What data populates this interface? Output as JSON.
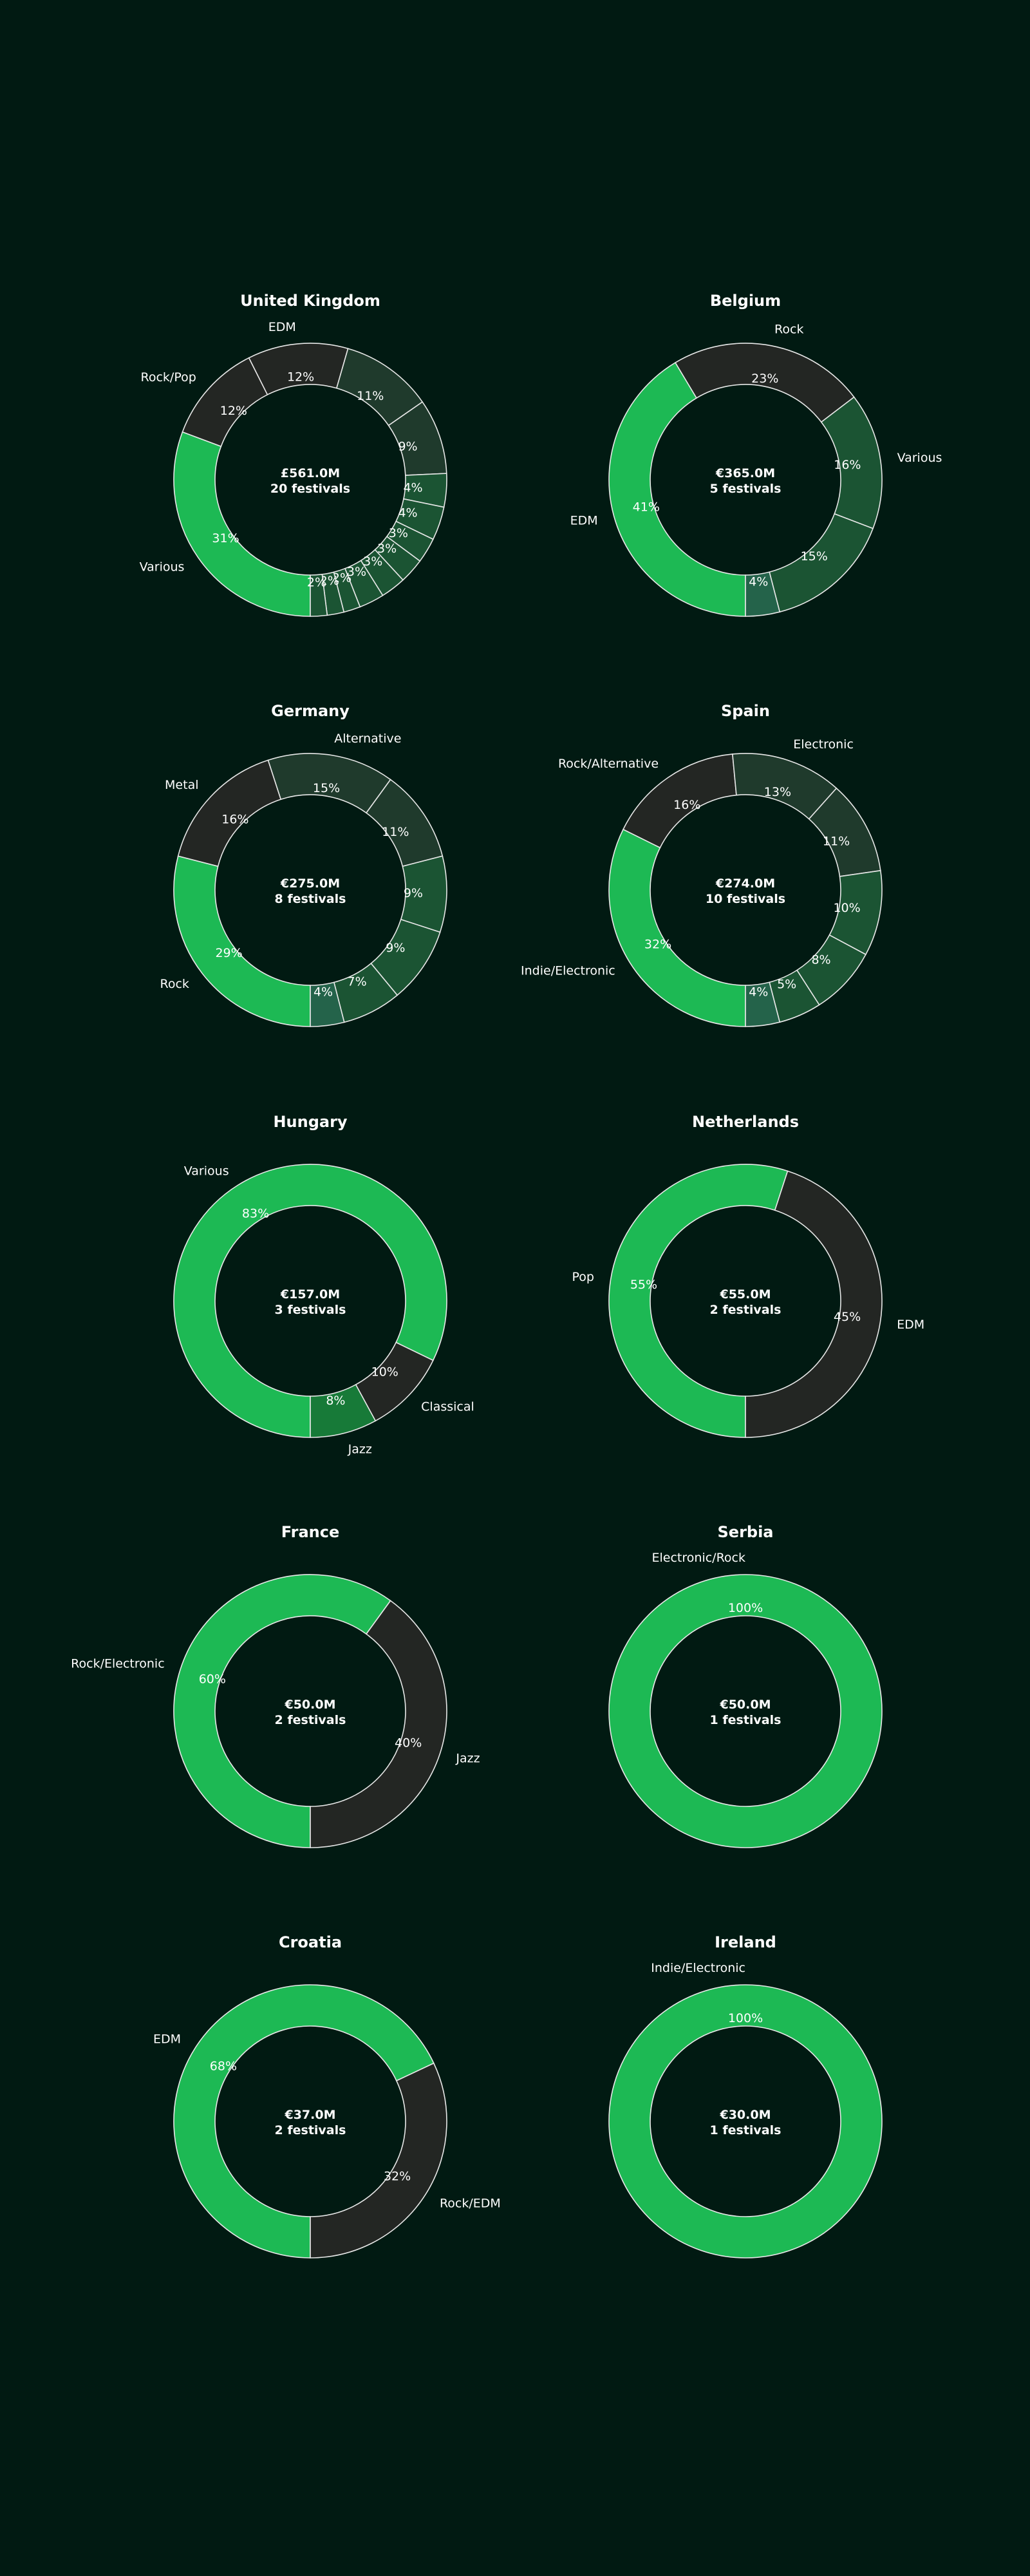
{
  "colors": {
    "background": "#011a12",
    "primary_green": "#1db954",
    "dark_gray": "#232623",
    "dark_green": "#1b5433",
    "green_2": "#24634a",
    "green_3": "#177a38",
    "mid_dark_green": "#1f3a2c",
    "text": "#ffffff",
    "slice_edge": "#e8e8e8"
  },
  "chart_data": [
    {
      "type": "pie",
      "title": "United Kingdom",
      "center_line1": "£561.0M",
      "center_line2": "20 festivals",
      "slices": [
        {
          "label": "Various",
          "pct": "31%",
          "value": 31,
          "color": "#1db954"
        },
        {
          "label": "Rock/Pop",
          "pct": "12%",
          "value": 12,
          "color": "#232623"
        },
        {
          "label": "EDM",
          "pct": "12%",
          "value": 12,
          "color": "#232623"
        },
        {
          "label": "",
          "pct": "11%",
          "value": 11,
          "color": "#1f3a2c"
        },
        {
          "label": "",
          "pct": "9%",
          "value": 9,
          "color": "#1f3a2c"
        },
        {
          "label": "",
          "pct": "4%",
          "value": 4,
          "color": "#1b5433"
        },
        {
          "label": "",
          "pct": "4%",
          "value": 4,
          "color": "#1b5433"
        },
        {
          "label": "",
          "pct": "3%",
          "value": 3,
          "color": "#1b5433"
        },
        {
          "label": "",
          "pct": "3%",
          "value": 3,
          "color": "#1b5433"
        },
        {
          "label": "",
          "pct": "3%",
          "value": 3,
          "color": "#1b5433"
        },
        {
          "label": "",
          "pct": "3%",
          "value": 3,
          "color": "#1b5433"
        },
        {
          "label": "",
          "pct": "2%",
          "value": 2,
          "color": "#1b5433"
        },
        {
          "label": "",
          "pct": "2%",
          "value": 2,
          "color": "#1b5433"
        },
        {
          "label": "",
          "pct": "2%",
          "value": 2,
          "color": "#1b5433"
        }
      ]
    },
    {
      "type": "pie",
      "title": "Belgium",
      "center_line1": "€365.0M",
      "center_line2": "5 festivals",
      "slices": [
        {
          "label": "EDM",
          "pct": "41%",
          "value": 41,
          "color": "#1db954"
        },
        {
          "label": "Rock",
          "pct": "23%",
          "value": 23,
          "color": "#232623"
        },
        {
          "label": "Various",
          "pct": "16%",
          "value": 16,
          "color": "#1b5433"
        },
        {
          "label": "",
          "pct": "15%",
          "value": 15,
          "color": "#1b5433"
        },
        {
          "label": "",
          "pct": "4%",
          "value": 4,
          "color": "#24634a"
        }
      ]
    },
    {
      "type": "pie",
      "title": "Germany",
      "center_line1": "€275.0M",
      "center_line2": "8 festivals",
      "slices": [
        {
          "label": "Rock",
          "pct": "29%",
          "value": 29,
          "color": "#1db954"
        },
        {
          "label": "Metal",
          "pct": "16%",
          "value": 16,
          "color": "#232623"
        },
        {
          "label": "Alternative",
          "pct": "15%",
          "value": 15,
          "color": "#1f3a2c"
        },
        {
          "label": "",
          "pct": "11%",
          "value": 11,
          "color": "#1f3a2c"
        },
        {
          "label": "",
          "pct": "9%",
          "value": 9,
          "color": "#1b5433"
        },
        {
          "label": "",
          "pct": "9%",
          "value": 9,
          "color": "#1b5433"
        },
        {
          "label": "",
          "pct": "7%",
          "value": 7,
          "color": "#1b5433"
        },
        {
          "label": "",
          "pct": "4%",
          "value": 4,
          "color": "#24634a"
        }
      ]
    },
    {
      "type": "pie",
      "title": "Spain",
      "center_line1": "€274.0M",
      "center_line2": "10 festivals",
      "slices": [
        {
          "label": "Indie/Electronic",
          "pct": "32%",
          "value": 32,
          "color": "#1db954"
        },
        {
          "label": "Rock/Alternative",
          "pct": "16%",
          "value": 16,
          "color": "#232623"
        },
        {
          "label": "Electronic",
          "pct": "13%",
          "value": 13,
          "color": "#1f3a2c"
        },
        {
          "label": "",
          "pct": "11%",
          "value": 11,
          "color": "#1f3a2c"
        },
        {
          "label": "",
          "pct": "10%",
          "value": 10,
          "color": "#1b5433"
        },
        {
          "label": "",
          "pct": "8%",
          "value": 8,
          "color": "#1b5433"
        },
        {
          "label": "",
          "pct": "5%",
          "value": 5,
          "color": "#1b5433"
        },
        {
          "label": "",
          "pct": "4%",
          "value": 4,
          "color": "#24634a"
        }
      ]
    },
    {
      "type": "pie",
      "title": "Hungary",
      "center_line1": "€157.0M",
      "center_line2": "3 festivals",
      "slices": [
        {
          "label": "Various",
          "pct": "83%",
          "value": 83,
          "color": "#1db954"
        },
        {
          "label": "Classical",
          "pct": "10%",
          "value": 10,
          "color": "#232623"
        },
        {
          "label": "Jazz",
          "pct": "8%",
          "value": 8,
          "color": "#177a38"
        }
      ]
    },
    {
      "type": "pie",
      "title": "Netherlands",
      "center_line1": "€55.0M",
      "center_line2": "2 festivals",
      "slices": [
        {
          "label": "Pop",
          "pct": "55%",
          "value": 55,
          "color": "#1db954"
        },
        {
          "label": "EDM",
          "pct": "45%",
          "value": 45,
          "color": "#232623"
        }
      ]
    },
    {
      "type": "pie",
      "title": "France",
      "center_line1": "€50.0M",
      "center_line2": "2 festivals",
      "slices": [
        {
          "label": "Rock/Electronic",
          "pct": "60%",
          "value": 60,
          "color": "#1db954"
        },
        {
          "label": "Jazz",
          "pct": "40%",
          "value": 40,
          "color": "#232623"
        }
      ]
    },
    {
      "type": "pie",
      "title": "Serbia",
      "center_line1": "€50.0M",
      "center_line2": "1 festivals",
      "slices": [
        {
          "label": "Electronic/Rock",
          "pct": "100%",
          "value": 100,
          "color": "#1db954"
        }
      ]
    },
    {
      "type": "pie",
      "title": "Croatia",
      "center_line1": "€37.0M",
      "center_line2": "2 festivals",
      "slices": [
        {
          "label": "EDM",
          "pct": "68%",
          "value": 68,
          "color": "#1db954"
        },
        {
          "label": "Rock/EDM",
          "pct": "32%",
          "value": 32,
          "color": "#232623"
        }
      ]
    },
    {
      "type": "pie",
      "title": "Ireland",
      "center_line1": "€30.0M",
      "center_line2": "1 festivals",
      "slices": [
        {
          "label": "Indie/Electronic",
          "pct": "100%",
          "value": 100,
          "color": "#1db954"
        }
      ]
    }
  ]
}
